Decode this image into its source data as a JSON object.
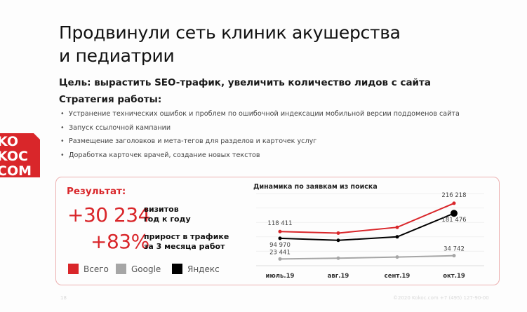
{
  "title": [
    "Продвинули сеть клиник акушерства",
    "и педиатрии"
  ],
  "goal": "Цель: вырастить SEO-трафик, увеличить количество лидов с сайта",
  "strategy": {
    "heading": "Стратегия работы:",
    "items": [
      "Устранение технических ошибок и проблем по ошибочной индексации мобильной версии поддоменов сайта",
      "Запуск ссылочной кампании",
      "Размещение заголовков и мета-тегов для разделов и карточек услуг",
      "Доработка карточек врачей, создание новых текстов"
    ]
  },
  "logo": {
    "text": "KOKOC.COM",
    "color": "#d9262a"
  },
  "result": {
    "heading": "Результат:",
    "visits_value": "+30 234",
    "visits_label": [
      "визитов",
      "год к году"
    ],
    "growth_value": "+83%",
    "growth_label": [
      "прирост в трафике",
      "за 3 месяца работ"
    ]
  },
  "legend": [
    {
      "label": "Всего",
      "color": "#d9262a"
    },
    {
      "label": "Google",
      "color": "#a6a6a6"
    },
    {
      "label": "Яндекс",
      "color": "#000000"
    }
  ],
  "chart_data": {
    "type": "line",
    "title": "Динамика по заявкам из поиска",
    "categories": [
      "июль.19",
      "авг.19",
      "сент.19",
      "окт.19"
    ],
    "ylim": [
      0,
      250000
    ],
    "grid": true,
    "series": [
      {
        "name": "Всего",
        "color": "#d9262a",
        "values": [
          118411,
          113000,
          133000,
          216218
        ],
        "labels": [
          "118 411",
          "",
          "",
          "216 218"
        ]
      },
      {
        "name": "Яндекс",
        "color": "#000000",
        "values": [
          94970,
          88000,
          100000,
          181476
        ],
        "labels": [
          "94 970",
          "",
          "",
          "181 476"
        ]
      },
      {
        "name": "Google",
        "color": "#a6a6a6",
        "values": [
          23441,
          26000,
          30000,
          34742
        ],
        "labels": [
          "23 441",
          "",
          "",
          "34 742"
        ]
      }
    ]
  },
  "footer": {
    "page": "18",
    "copyright": "©2020 Kokoc.com +7 (495) 127-90-00"
  }
}
